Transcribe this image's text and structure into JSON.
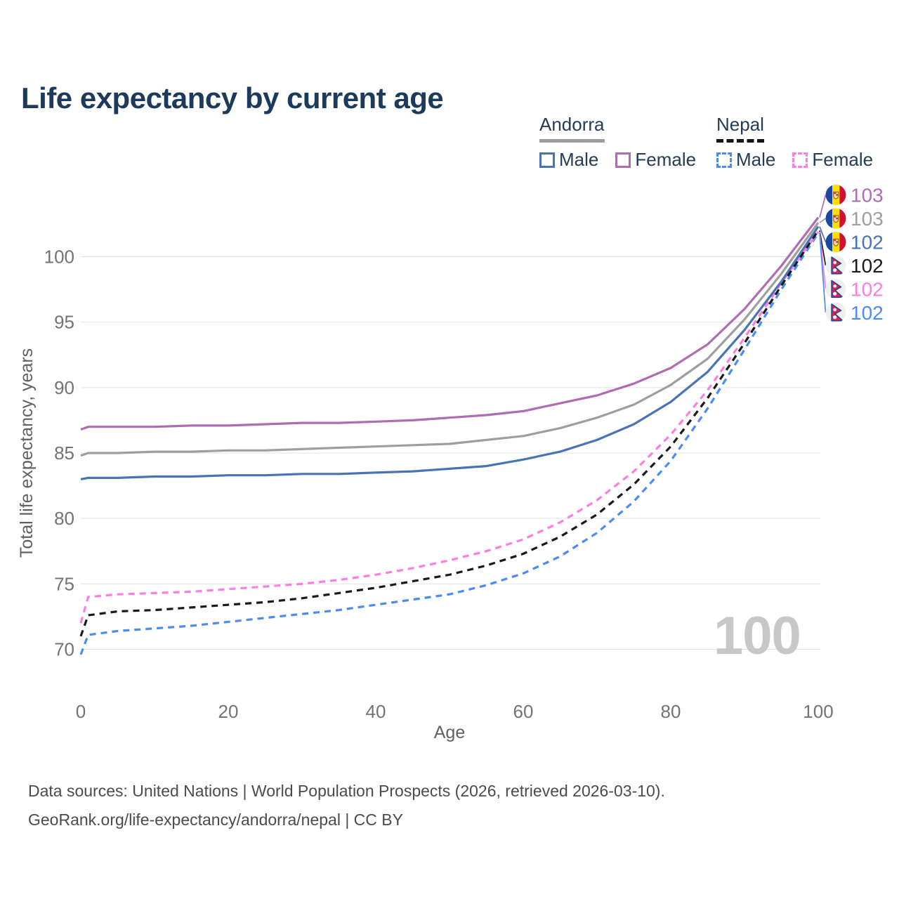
{
  "title": "Life expectancy by current age",
  "watermark": "100",
  "legend": {
    "groups": [
      {
        "name": "Andorra",
        "underline_style": "solid",
        "underline_color": "#9e9e9e",
        "items": [
          {
            "label": "Male",
            "color": "#4a73b5",
            "dash": "solid"
          },
          {
            "label": "Female",
            "color": "#b06cb3",
            "dash": "solid"
          }
        ]
      },
      {
        "name": "Nepal",
        "underline_style": "dashed",
        "underline_color": "#141414",
        "items": [
          {
            "label": "Male",
            "color": "#4a8bf7",
            "dash": "dashed"
          },
          {
            "label": "Female",
            "color": "#ff7ce0",
            "dash": "dashed"
          }
        ]
      }
    ]
  },
  "axes": {
    "x_label": "Age",
    "y_label": "Total life expectancy, years",
    "x_ticks": [
      0,
      20,
      40,
      60,
      80,
      100
    ],
    "y_ticks": [
      100,
      95,
      90,
      85,
      80,
      75,
      70
    ]
  },
  "footer": {
    "line1": "Data sources: United Nations | World Population Prospects (2026, retrieved 2026-03-10).",
    "line2": "GeoRank.org/life-expectancy/andorra/nepal | CC BY"
  },
  "flags": {
    "andorra": {
      "blue": "#1a47a0",
      "yellow": "#fedd00",
      "red": "#d21034",
      "shield_fill": "#f3dfae",
      "shield_stroke": "#9b5d1f",
      "shield_detail": "#cf3545"
    },
    "nepal": {
      "crimson": "#dc2345",
      "border_blue": "#20409a",
      "bg": "#efefef",
      "symbol": "#ffffff"
    }
  },
  "chart_data": {
    "type": "line",
    "title": "Life expectancy by current age",
    "xlabel": "Age",
    "ylabel": "Total life expectancy, years",
    "xlim": [
      0,
      100
    ],
    "ylim": [
      69,
      104
    ],
    "grid": "horizontal",
    "legend_position": "top-right",
    "ages": [
      0,
      1,
      5,
      10,
      15,
      20,
      25,
      30,
      35,
      40,
      45,
      50,
      55,
      60,
      65,
      70,
      75,
      80,
      85,
      90,
      95,
      100
    ],
    "series": [
      {
        "name": "Andorra Female",
        "country": "andorra",
        "sex": "female",
        "color": "#b06cb3",
        "dash": "solid",
        "end_label": "103",
        "values": [
          86.8,
          87.0,
          87.0,
          87.0,
          87.1,
          87.1,
          87.2,
          87.3,
          87.3,
          87.4,
          87.5,
          87.7,
          87.9,
          88.2,
          88.8,
          89.4,
          90.3,
          91.5,
          93.3,
          96.0,
          99.3,
          103.0
        ]
      },
      {
        "name": "Andorra Both sexes",
        "country": "andorra",
        "sex": "both",
        "color": "#9e9e9e",
        "dash": "solid",
        "end_label": "103",
        "values": [
          84.8,
          85.0,
          85.0,
          85.1,
          85.1,
          85.2,
          85.2,
          85.3,
          85.4,
          85.5,
          85.6,
          85.7,
          86.0,
          86.3,
          86.9,
          87.7,
          88.7,
          90.2,
          92.2,
          95.2,
          98.7,
          102.6
        ]
      },
      {
        "name": "Andorra Male",
        "country": "andorra",
        "sex": "male",
        "color": "#4a73b5",
        "dash": "solid",
        "end_label": "102",
        "values": [
          83.0,
          83.1,
          83.1,
          83.2,
          83.2,
          83.3,
          83.3,
          83.4,
          83.4,
          83.5,
          83.6,
          83.8,
          84.0,
          84.5,
          85.1,
          86.0,
          87.2,
          88.9,
          91.2,
          94.4,
          98.1,
          102.3
        ]
      },
      {
        "name": "Nepal Both sexes",
        "country": "nepal",
        "sex": "both",
        "color": "#1a1a1a",
        "dash": "dashed",
        "end_label": "102",
        "values": [
          71.0,
          72.6,
          72.9,
          73.0,
          73.2,
          73.4,
          73.6,
          73.9,
          74.3,
          74.7,
          75.2,
          75.7,
          76.4,
          77.3,
          78.6,
          80.3,
          82.6,
          85.5,
          89.2,
          93.4,
          97.8,
          102.0
        ]
      },
      {
        "name": "Nepal Female",
        "country": "nepal",
        "sex": "female",
        "color": "#ff7ce0",
        "dash": "dashed",
        "end_label": "102",
        "values": [
          72.0,
          74.0,
          74.2,
          74.3,
          74.4,
          74.6,
          74.8,
          75.0,
          75.3,
          75.7,
          76.2,
          76.8,
          77.5,
          78.4,
          79.7,
          81.4,
          83.6,
          86.4,
          89.8,
          93.8,
          98.0,
          101.9
        ]
      },
      {
        "name": "Nepal Male",
        "country": "nepal",
        "sex": "male",
        "color": "#4a8bf7",
        "dash": "dashed",
        "end_label": "102",
        "values": [
          69.6,
          71.1,
          71.4,
          71.6,
          71.8,
          72.1,
          72.4,
          72.7,
          73.0,
          73.4,
          73.8,
          74.2,
          74.9,
          75.8,
          77.1,
          78.9,
          81.3,
          84.4,
          88.4,
          92.9,
          97.5,
          101.8
        ]
      }
    ]
  }
}
